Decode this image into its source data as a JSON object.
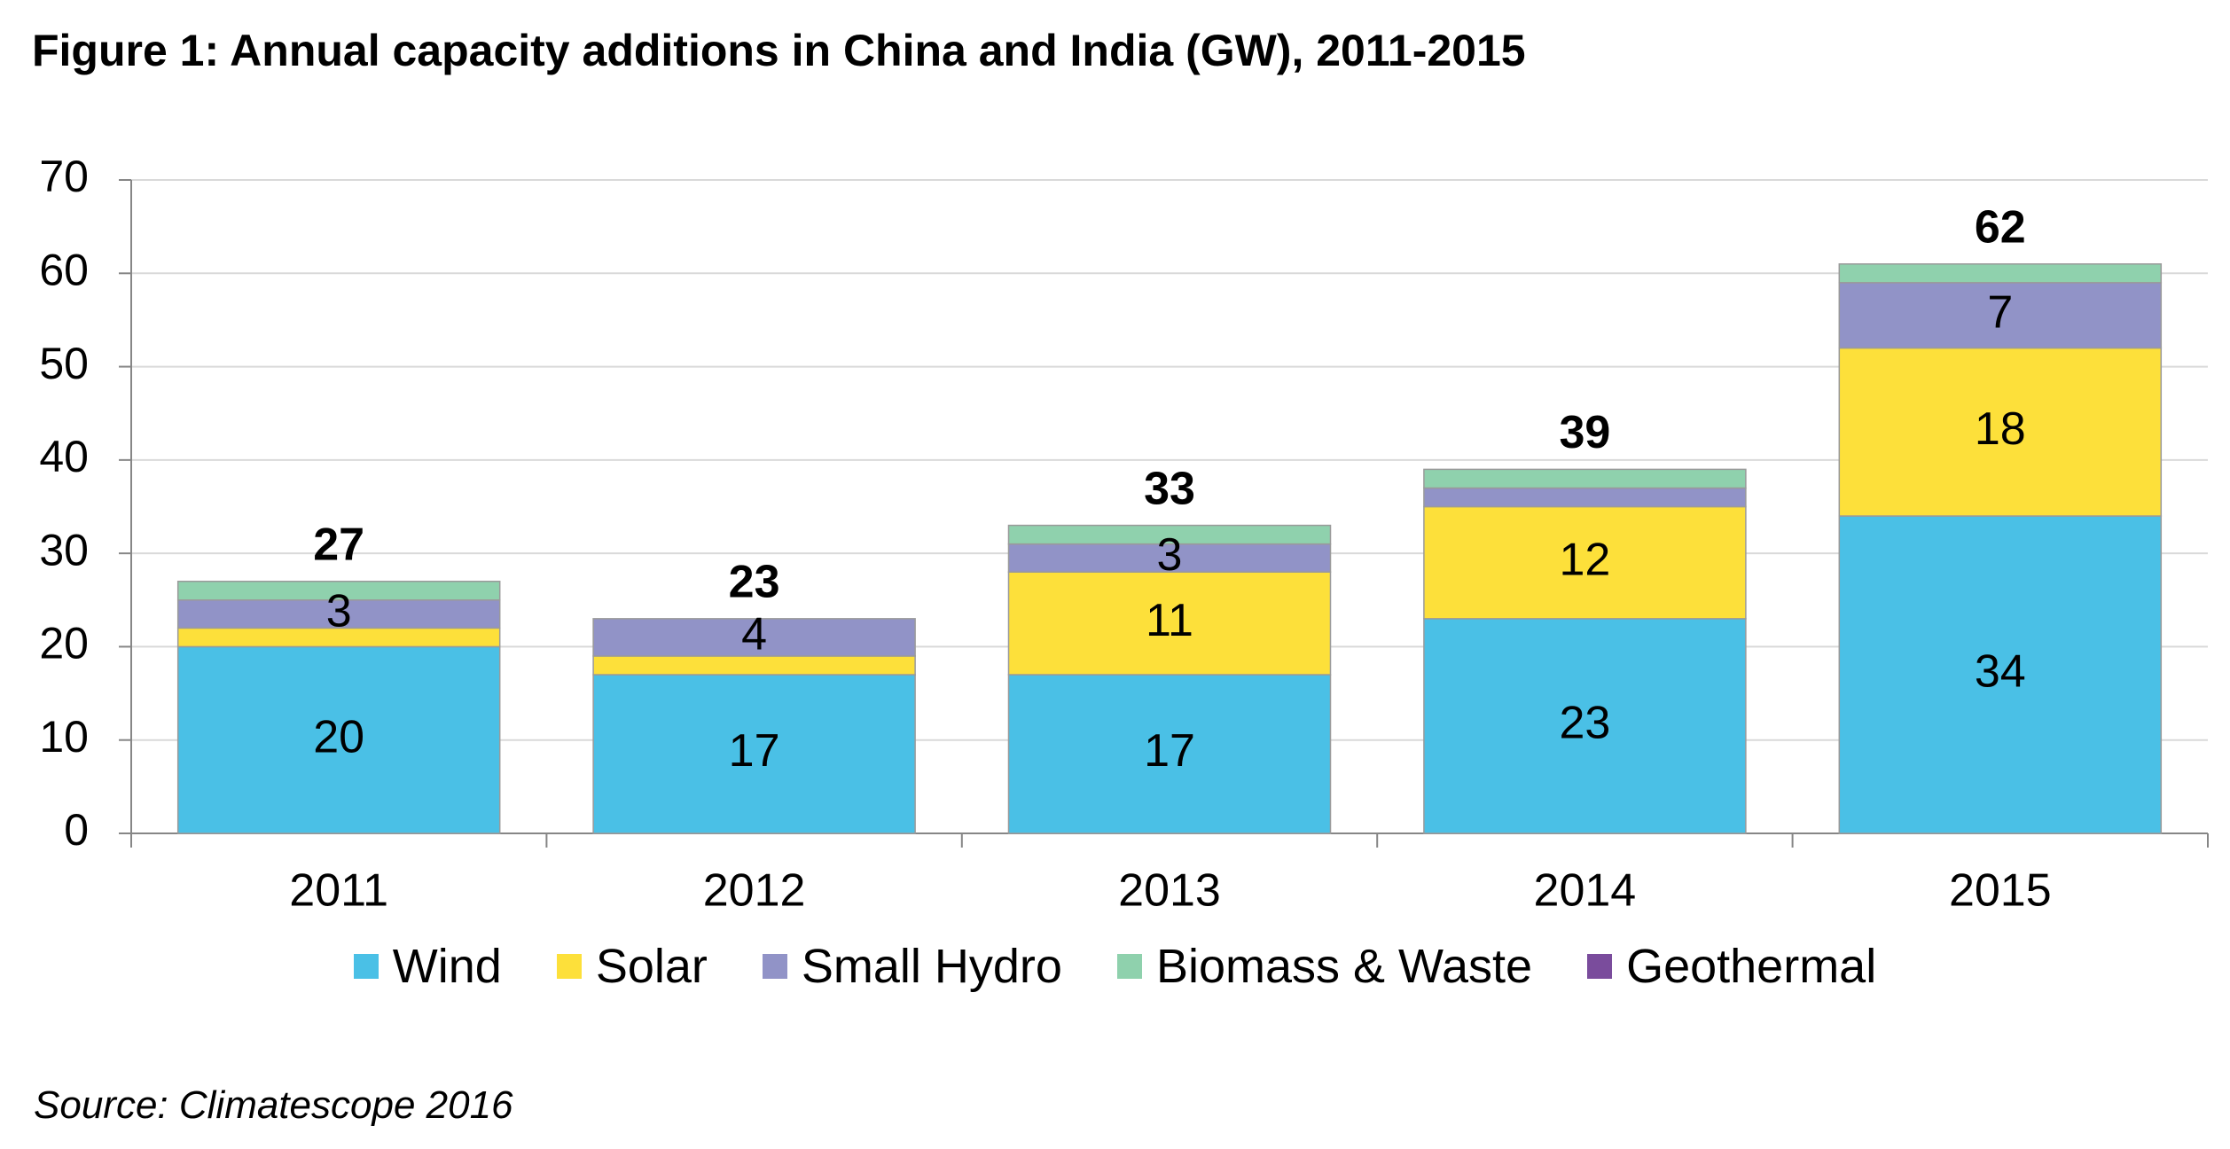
{
  "title": "Figure 1: Annual capacity additions in China and India (GW), 2011-2015",
  "source": "Source: Climatescope 2016",
  "colors": {
    "Wind": "#4ac0e6",
    "Solar": "#fde03a",
    "Small Hydro": "#9193c7",
    "Biomass & Waste": "#8fd1ad",
    "Geothermal": "#7a4c9c",
    "grid": "#d9d9d9",
    "axis": "#868686",
    "bar_border": "#9a9a9a"
  },
  "chart_data": {
    "type": "bar",
    "stacked": true,
    "categories": [
      "2011",
      "2012",
      "2013",
      "2014",
      "2015"
    ],
    "series": [
      {
        "name": "Wind",
        "values": [
          20,
          17,
          17,
          23,
          34
        ],
        "labels": [
          "20",
          "17",
          "17",
          "23",
          "34"
        ]
      },
      {
        "name": "Solar",
        "values": [
          2,
          2,
          11,
          12,
          18
        ],
        "labels": [
          "",
          "",
          "11",
          "12",
          "18"
        ]
      },
      {
        "name": "Small Hydro",
        "values": [
          3,
          4,
          3,
          2,
          7
        ],
        "labels": [
          "3",
          "4",
          "3",
          "",
          "7"
        ]
      },
      {
        "name": "Biomass & Waste",
        "values": [
          2,
          0,
          2,
          2,
          2
        ],
        "labels": [
          "",
          "",
          "",
          "",
          ""
        ]
      },
      {
        "name": "Geothermal",
        "values": [
          0,
          0,
          0,
          0,
          0
        ],
        "labels": [
          "",
          "",
          "",
          "",
          ""
        ]
      }
    ],
    "totals": [
      "27",
      "23",
      "33",
      "39",
      "62"
    ],
    "ylim": [
      0,
      70
    ],
    "yticks": [
      0,
      10,
      20,
      30,
      40,
      50,
      60,
      70
    ],
    "xlabel": "",
    "ylabel": "",
    "grid": true,
    "legend": "bottom"
  }
}
